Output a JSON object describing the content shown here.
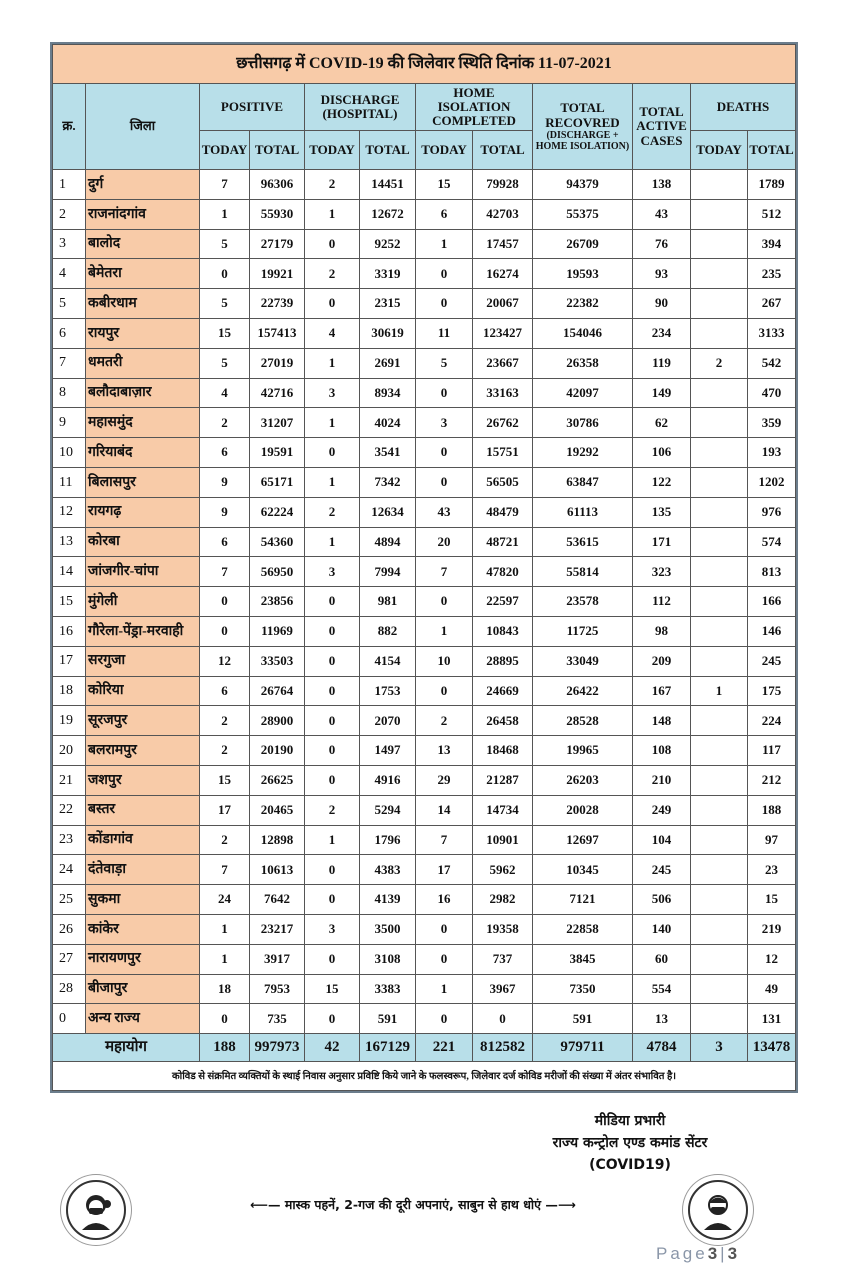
{
  "title": "छत्तीसगढ़ में COVID-19 की जिलेवार स्थिति दिनांक 11-07-2021",
  "headers": {
    "sno": "क्र.",
    "district": "जिला",
    "positive": "POSITIVE",
    "discharge": "DISCHARGE (HOSPITAL)",
    "home_isolation": "HOME ISOLATION COMPLETED",
    "total_recovered": "TOTAL RECOVRED",
    "total_recovered_sub": "(DISCHARGE + HOME ISOLATION)",
    "active": "TOTAL ACTIVE CASES",
    "deaths": "DEATHS",
    "today": "TODAY",
    "total": "TOTAL"
  },
  "rows": [
    [
      "1",
      "दुर्ग",
      "7",
      "96306",
      "2",
      "14451",
      "15",
      "79928",
      "94379",
      "138",
      "",
      "1789"
    ],
    [
      "2",
      "राजनांदगांव",
      "1",
      "55930",
      "1",
      "12672",
      "6",
      "42703",
      "55375",
      "43",
      "",
      "512"
    ],
    [
      "3",
      "बालोद",
      "5",
      "27179",
      "0",
      "9252",
      "1",
      "17457",
      "26709",
      "76",
      "",
      "394"
    ],
    [
      "4",
      "बेमेतरा",
      "0",
      "19921",
      "2",
      "3319",
      "0",
      "16274",
      "19593",
      "93",
      "",
      "235"
    ],
    [
      "5",
      "कबीरधाम",
      "5",
      "22739",
      "0",
      "2315",
      "0",
      "20067",
      "22382",
      "90",
      "",
      "267"
    ],
    [
      "6",
      "रायपुर",
      "15",
      "157413",
      "4",
      "30619",
      "11",
      "123427",
      "154046",
      "234",
      "",
      "3133"
    ],
    [
      "7",
      "धमतरी",
      "5",
      "27019",
      "1",
      "2691",
      "5",
      "23667",
      "26358",
      "119",
      "2",
      "542"
    ],
    [
      "8",
      "बलौदाबाज़ार",
      "4",
      "42716",
      "3",
      "8934",
      "0",
      "33163",
      "42097",
      "149",
      "",
      "470"
    ],
    [
      "9",
      "महासमुंद",
      "2",
      "31207",
      "1",
      "4024",
      "3",
      "26762",
      "30786",
      "62",
      "",
      "359"
    ],
    [
      "10",
      "गरियाबंद",
      "6",
      "19591",
      "0",
      "3541",
      "0",
      "15751",
      "19292",
      "106",
      "",
      "193"
    ],
    [
      "11",
      "बिलासपुर",
      "9",
      "65171",
      "1",
      "7342",
      "0",
      "56505",
      "63847",
      "122",
      "",
      "1202"
    ],
    [
      "12",
      "रायगढ़",
      "9",
      "62224",
      "2",
      "12634",
      "43",
      "48479",
      "61113",
      "135",
      "",
      "976"
    ],
    [
      "13",
      "कोरबा",
      "6",
      "54360",
      "1",
      "4894",
      "20",
      "48721",
      "53615",
      "171",
      "",
      "574"
    ],
    [
      "14",
      "जांजगीर-चांपा",
      "7",
      "56950",
      "3",
      "7994",
      "7",
      "47820",
      "55814",
      "323",
      "",
      "813"
    ],
    [
      "15",
      "मुंगेली",
      "0",
      "23856",
      "0",
      "981",
      "0",
      "22597",
      "23578",
      "112",
      "",
      "166"
    ],
    [
      "16",
      "गौरेला-पेंड्रा-मरवाही",
      "0",
      "11969",
      "0",
      "882",
      "1",
      "10843",
      "11725",
      "98",
      "",
      "146"
    ],
    [
      "17",
      "सरगुजा",
      "12",
      "33503",
      "0",
      "4154",
      "10",
      "28895",
      "33049",
      "209",
      "",
      "245"
    ],
    [
      "18",
      "कोरिया",
      "6",
      "26764",
      "0",
      "1753",
      "0",
      "24669",
      "26422",
      "167",
      "1",
      "175"
    ],
    [
      "19",
      "सूरजपुर",
      "2",
      "28900",
      "0",
      "2070",
      "2",
      "26458",
      "28528",
      "148",
      "",
      "224"
    ],
    [
      "20",
      "बलरामपुर",
      "2",
      "20190",
      "0",
      "1497",
      "13",
      "18468",
      "19965",
      "108",
      "",
      "117"
    ],
    [
      "21",
      "जशपुर",
      "15",
      "26625",
      "0",
      "4916",
      "29",
      "21287",
      "26203",
      "210",
      "",
      "212"
    ],
    [
      "22",
      "बस्तर",
      "17",
      "20465",
      "2",
      "5294",
      "14",
      "14734",
      "20028",
      "249",
      "",
      "188"
    ],
    [
      "23",
      "कोंडागांव",
      "2",
      "12898",
      "1",
      "1796",
      "7",
      "10901",
      "12697",
      "104",
      "",
      "97"
    ],
    [
      "24",
      "दंतेवाड़ा",
      "7",
      "10613",
      "0",
      "4383",
      "17",
      "5962",
      "10345",
      "245",
      "",
      "23"
    ],
    [
      "25",
      "सुकमा",
      "24",
      "7642",
      "0",
      "4139",
      "16",
      "2982",
      "7121",
      "506",
      "",
      "15"
    ],
    [
      "26",
      "कांकेर",
      "1",
      "23217",
      "3",
      "3500",
      "0",
      "19358",
      "22858",
      "140",
      "",
      "219"
    ],
    [
      "27",
      "नारायणपुर",
      "1",
      "3917",
      "0",
      "3108",
      "0",
      "737",
      "3845",
      "60",
      "",
      "12"
    ],
    [
      "28",
      "बीजापुर",
      "18",
      "7953",
      "15",
      "3383",
      "1",
      "3967",
      "7350",
      "554",
      "",
      "49"
    ],
    [
      "0",
      "अन्य राज्य",
      "0",
      "735",
      "0",
      "591",
      "0",
      "0",
      "591",
      "13",
      "",
      "131"
    ]
  ],
  "total_row": {
    "label": "महायोग",
    "values": [
      "188",
      "997973",
      "42",
      "167129",
      "221",
      "812582",
      "979711",
      "4784",
      "3",
      "13478"
    ]
  },
  "footnote": "कोविड से संक्रमित व्यक्तियों के स्थाई निवास अनुसार प्रविष्टि किये जाने के फलस्वरूप, जिलेवार दर्ज कोविड मरीजों की संख्या में अंतर संभावित है।",
  "signature": {
    "line1": "मीडिया प्रभारी",
    "line2": "राज्य कन्ट्रोल एण्ड कमांड सेंटर",
    "line3": "(COVID19)"
  },
  "slogan": "⟵— मास्क पहनें, 2-गज की दूरी अपनाएं, साबुन से हाथ धोएं —⟶",
  "page": {
    "label": "Page",
    "current": "3",
    "total": "3"
  },
  "colors": {
    "peach": "#f8cba8",
    "header_blue": "#b8dfe9"
  }
}
